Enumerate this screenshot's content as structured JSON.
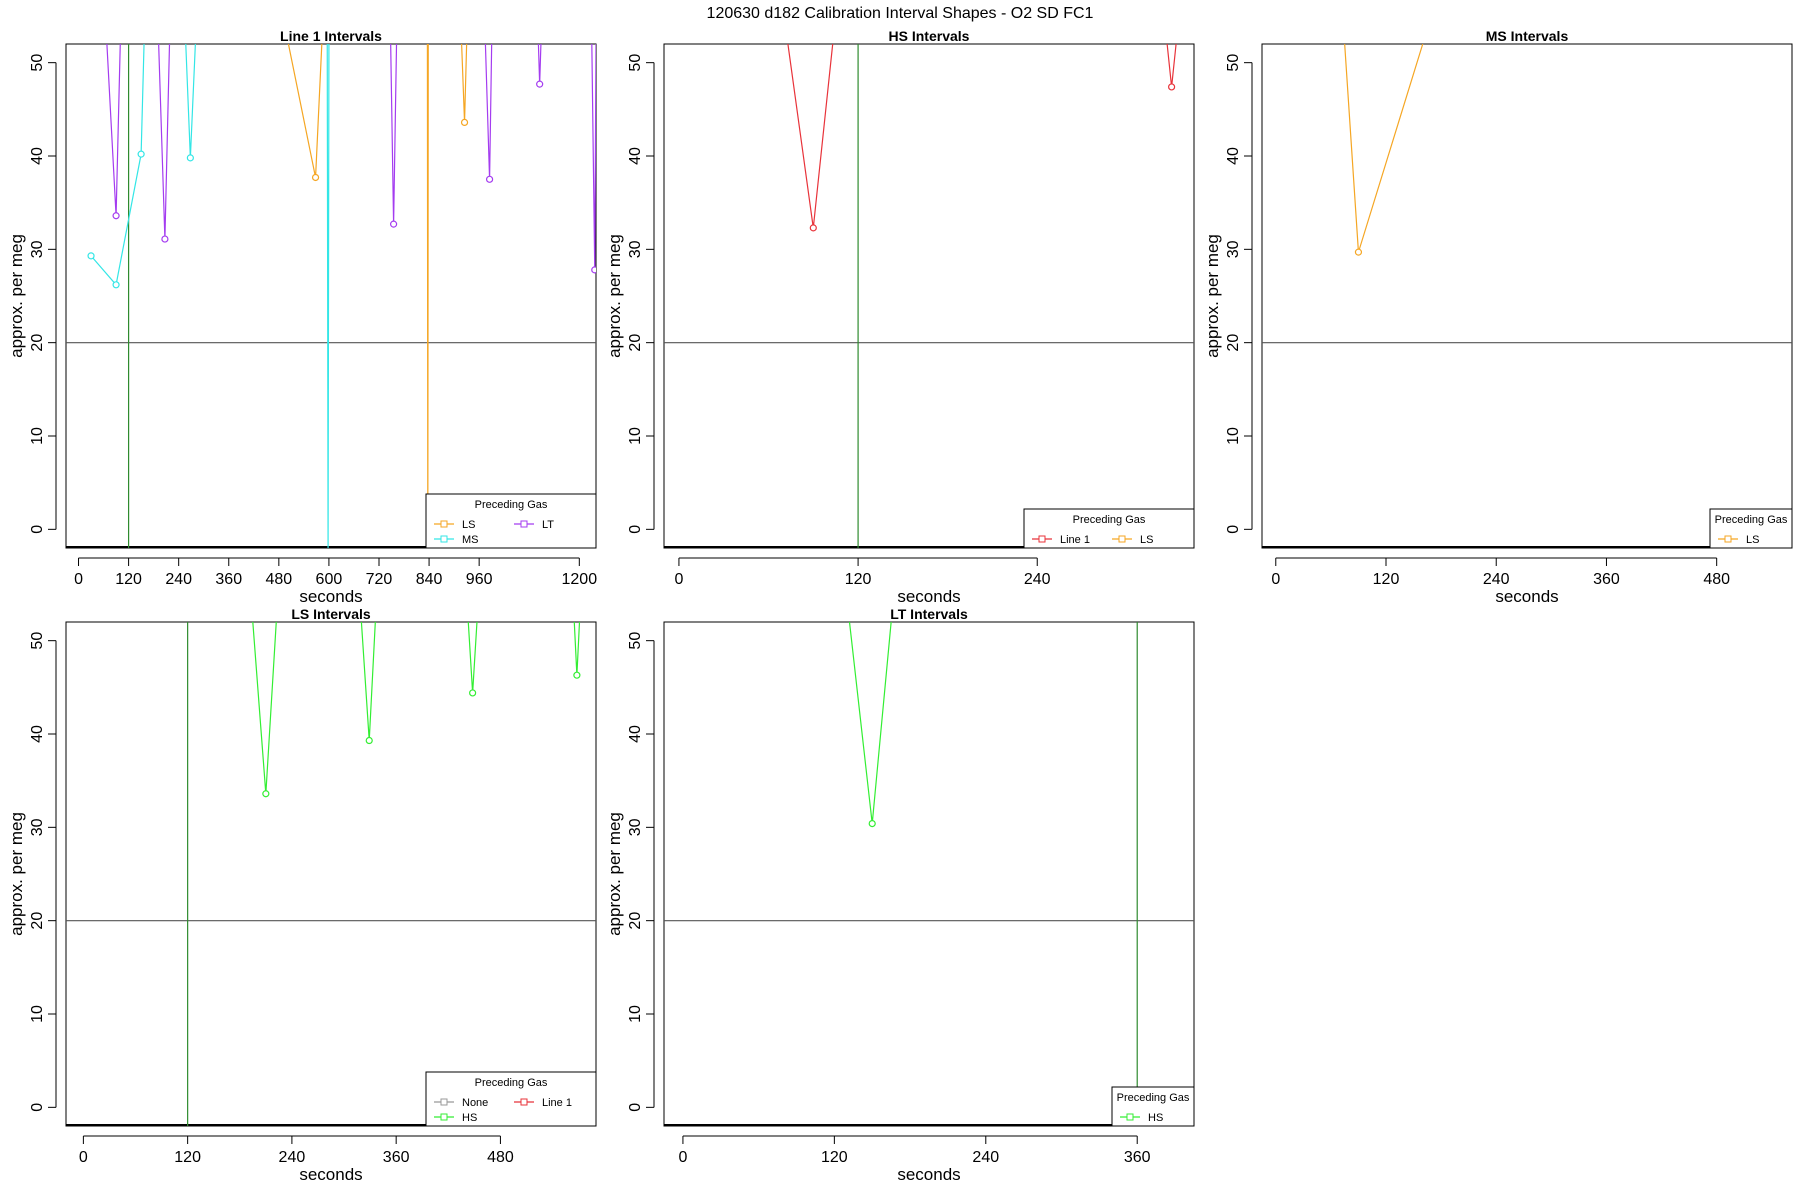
{
  "figure_title": "120630   d182   Calibration Interval Shapes - O2 SD FC1",
  "legend_title": "Preceding Gas",
  "colors": {
    "Line 1": "#e8333a",
    "LS": "#f5a623",
    "MS": "#33e6e6",
    "LT": "#a43cf0",
    "HS": "#33ee33",
    "None": "#999999",
    "ref_hline": "#555555",
    "ref_vline": "#2e8b2e"
  },
  "chart_data": [
    {
      "type": "line",
      "title": "Line 1 Intervals",
      "xlabel": "seconds",
      "ylabel": "approx. per meg",
      "xlim": [
        -30,
        1240
      ],
      "ylim": [
        -2,
        52
      ],
      "xticks": [
        0,
        120,
        240,
        360,
        480,
        600,
        720,
        840,
        960,
        1200
      ],
      "yticks": [
        0,
        10,
        20,
        30,
        40,
        50
      ],
      "hline": 20,
      "vlines": [
        120
      ],
      "legend": {
        "position": "bottom-right",
        "entries": [
          "LS",
          "LT",
          "MS"
        ]
      },
      "series": [
        {
          "gas": "MS",
          "values": [
            [
              30,
              29.3
            ],
            [
              90,
              26.2
            ],
            [
              150,
              40.2
            ],
            [
              157,
              52
            ]
          ]
        },
        {
          "gas": "LT",
          "values": [
            [
              68,
              52
            ],
            [
              90,
              33.6
            ],
            [
              100,
              52
            ]
          ]
        },
        {
          "gas": "LT",
          "values": [
            [
              192,
              52
            ],
            [
              207,
              31.1
            ],
            [
              218,
              52
            ]
          ]
        },
        {
          "gas": "MS",
          "values": [
            [
              257,
              52
            ],
            [
              268,
              39.8
            ],
            [
              280,
              52
            ]
          ]
        },
        {
          "gas": "LS",
          "values": [
            [
              503,
              52
            ],
            [
              568,
              37.7
            ],
            [
              583,
              52
            ]
          ]
        },
        {
          "gas": "MS",
          "values": [
            [
              596,
              52
            ],
            [
              598,
              -2
            ],
            [
              600,
              52
            ]
          ]
        },
        {
          "gas": "LT",
          "values": [
            [
              748,
              52
            ],
            [
              755,
              32.7
            ],
            [
              762,
              52
            ]
          ]
        },
        {
          "gas": "LS",
          "values": [
            [
              836,
              52
            ],
            [
              837,
              -2
            ],
            [
              838,
              52
            ]
          ]
        },
        {
          "gas": "LS",
          "values": [
            [
              918,
              52
            ],
            [
              925,
              43.6
            ],
            [
              930,
              52
            ]
          ]
        },
        {
          "gas": "LT",
          "values": [
            [
              975,
              52
            ],
            [
              985,
              37.5
            ],
            [
              990,
              52
            ]
          ]
        },
        {
          "gas": "LT",
          "values": [
            [
              1102,
              52
            ],
            [
              1105,
              47.7
            ],
            [
              1108,
              52
            ]
          ]
        },
        {
          "gas": "LT",
          "values": [
            [
              1230,
              52
            ],
            [
              1237,
              27.8
            ],
            [
              1240,
              52
            ]
          ]
        }
      ]
    },
    {
      "type": "line",
      "title": "HS Intervals",
      "xlabel": "seconds",
      "ylabel": "approx. per meg",
      "xlim": [
        -10,
        345
      ],
      "ylim": [
        -2,
        52
      ],
      "xticks": [
        0,
        120,
        240
      ],
      "yticks": [
        0,
        10,
        20,
        30,
        40,
        50
      ],
      "hline": 20,
      "vlines": [
        120
      ],
      "legend": {
        "position": "bottom-right",
        "entries": [
          "Line 1",
          "LS"
        ]
      },
      "series": [
        {
          "gas": "Line 1",
          "values": [
            [
              73,
              52
            ],
            [
              90,
              32.3
            ],
            [
              103,
              52
            ]
          ]
        },
        {
          "gas": "Line 1",
          "values": [
            [
              327,
              52
            ],
            [
              330,
              47.4
            ],
            [
              333,
              52
            ]
          ]
        }
      ]
    },
    {
      "type": "line",
      "title": "MS Intervals",
      "xlabel": "seconds",
      "ylabel": "approx. per meg",
      "xlim": [
        -15,
        562
      ],
      "ylim": [
        -2,
        52
      ],
      "xticks": [
        0,
        120,
        240,
        360,
        480
      ],
      "yticks": [
        0,
        10,
        20,
        30,
        40,
        50
      ],
      "hline": 20,
      "legend": {
        "position": "bottom-right",
        "entries": [
          "LS"
        ]
      },
      "series": [
        {
          "gas": "LS",
          "values": [
            [
              75,
              52
            ],
            [
              90,
              29.7
            ],
            [
              160,
              52
            ]
          ]
        }
      ]
    },
    {
      "type": "line",
      "title": "LS Intervals",
      "xlabel": "seconds",
      "ylabel": "approx. per meg",
      "xlim": [
        -20,
        590
      ],
      "ylim": [
        -2,
        52
      ],
      "xticks": [
        0,
        120,
        240,
        360,
        480
      ],
      "yticks": [
        0,
        10,
        20,
        30,
        40,
        50
      ],
      "hline": 20,
      "vlines": [
        120
      ],
      "legend": {
        "position": "bottom-right",
        "entries": [
          "None",
          "Line 1",
          "HS"
        ]
      },
      "series": [
        {
          "gas": "HS",
          "values": [
            [
              195,
              52
            ],
            [
              210,
              33.6
            ],
            [
              222,
              52
            ]
          ]
        },
        {
          "gas": "HS",
          "values": [
            [
              320,
              52
            ],
            [
              329,
              39.3
            ],
            [
              336,
              52
            ]
          ]
        },
        {
          "gas": "HS",
          "values": [
            [
              443,
              52
            ],
            [
              448,
              44.4
            ],
            [
              453,
              52
            ]
          ]
        },
        {
          "gas": "HS",
          "values": [
            [
              565,
              52
            ],
            [
              568,
              46.3
            ],
            [
              571,
              52
            ]
          ]
        }
      ]
    },
    {
      "type": "line",
      "title": "LT Intervals",
      "xlabel": "seconds",
      "ylabel": "approx. per meg",
      "xlim": [
        -15,
        405
      ],
      "ylim": [
        -2,
        52
      ],
      "xticks": [
        0,
        120,
        240,
        360
      ],
      "yticks": [
        0,
        10,
        20,
        30,
        40,
        50
      ],
      "hline": 20,
      "vlines": [
        360
      ],
      "legend": {
        "position": "bottom-right",
        "entries": [
          "HS"
        ]
      },
      "series": [
        {
          "gas": "HS",
          "values": [
            [
              132,
              52
            ],
            [
              150,
              30.4
            ],
            [
              165,
              52
            ]
          ]
        }
      ]
    }
  ]
}
